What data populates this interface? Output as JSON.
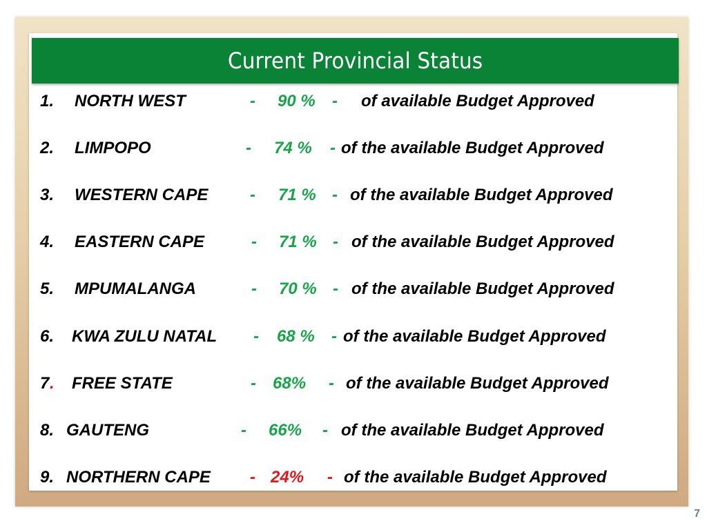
{
  "slide": {
    "title": "Current Provincial Status",
    "page_number": "7"
  },
  "colors": {
    "title_bar": "#0a8336",
    "percent_green": "#18a54a",
    "percent_red": "#e3161d"
  },
  "rows": [
    {
      "num": "1.",
      "name": "NORTH WEST",
      "dash1": "-",
      "pct": "90 %",
      "dash2": "-",
      "desc": "of available Budget Approved"
    },
    {
      "num": "2.",
      "name": "LIMPOPO",
      "dash1": "-",
      "pct": "74 %",
      "dash2": "-",
      "desc": "of the available Budget Approved"
    },
    {
      "num": "3.",
      "name": "WESTERN CAPE",
      "dash1": "-",
      "pct": "71 %",
      "dash2": "-",
      "desc": "of the available Budget Approved"
    },
    {
      "num": "4.",
      "name": "EASTERN CAPE",
      "dash1": "-",
      "pct": "71 %",
      "dash2": "-",
      "desc": "of the available Budget Approved"
    },
    {
      "num": "5.",
      "name": "MPUMALANGA",
      "dash1": "-",
      "pct": "70 %",
      "dash2": "-",
      "desc": "of the available Budget Approved"
    },
    {
      "num": "6.",
      "name": "KWA ZULU NATAL",
      "dash1": "-",
      "pct": "68 %",
      "dash2": "-",
      "desc": "of the available Budget Approved"
    },
    {
      "num": "7",
      "num_dot": ".",
      "name": "FREE STATE",
      "dash1": "-",
      "pct": "68%",
      "dash2": "-",
      "desc": "of the available Budget Approved"
    },
    {
      "num": "8.",
      "name": "GAUTENG",
      "dash1": "-",
      "pct": "66%",
      "dash2": "-",
      "desc": "of the available Budget Approved"
    },
    {
      "num": "9.",
      "name": "NORTHERN CAPE",
      "dash1": "-",
      "pct": "24%",
      "dash2": "-",
      "desc": "of the available Budget Approved"
    }
  ]
}
